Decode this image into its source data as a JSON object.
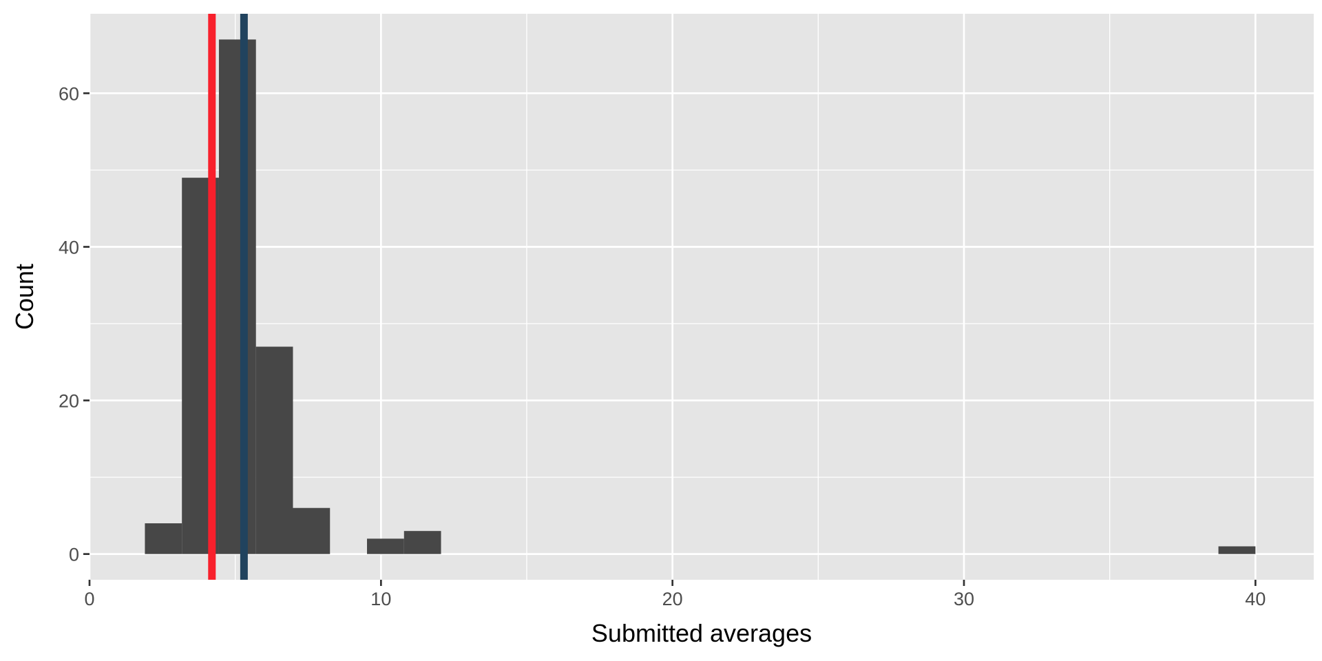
{
  "chart_data": {
    "type": "bar",
    "subtype": "histogram",
    "title": "",
    "xlabel": "Submitted averages",
    "ylabel": "Count",
    "xlim": [
      0,
      42
    ],
    "ylim": [
      -3.35,
      70.35
    ],
    "x_ticks": [
      0,
      10,
      20,
      30,
      40
    ],
    "y_ticks": [
      0,
      20,
      40,
      60
    ],
    "x_tick_labels": [
      "0",
      "10",
      "20",
      "30",
      "40"
    ],
    "y_tick_labels": [
      "0",
      "20",
      "40",
      "60"
    ],
    "x_minor_ticks": [
      5,
      15,
      25,
      35
    ],
    "y_minor_ticks": [
      10,
      30,
      50
    ],
    "grid": true,
    "bin_width": 1.27,
    "bins": [
      {
        "x0": 1.9,
        "x1": 3.17,
        "count": 4
      },
      {
        "x0": 3.17,
        "x1": 4.44,
        "count": 49
      },
      {
        "x0": 4.44,
        "x1": 5.71,
        "count": 67
      },
      {
        "x0": 5.71,
        "x1": 6.98,
        "count": 27
      },
      {
        "x0": 6.98,
        "x1": 8.25,
        "count": 6
      },
      {
        "x0": 9.52,
        "x1": 10.79,
        "count": 2
      },
      {
        "x0": 10.79,
        "x1": 12.06,
        "count": 3
      },
      {
        "x0": 38.73,
        "x1": 40.0,
        "count": 1
      }
    ],
    "reference_lines": [
      {
        "x": 4.2,
        "color": "#f8202c"
      },
      {
        "x": 5.3,
        "color": "#21435e"
      }
    ],
    "colors": {
      "bar_fill": "#474747",
      "panel_background": "#e5e5e5",
      "grid": "#ffffff",
      "axis": "#333333"
    }
  }
}
